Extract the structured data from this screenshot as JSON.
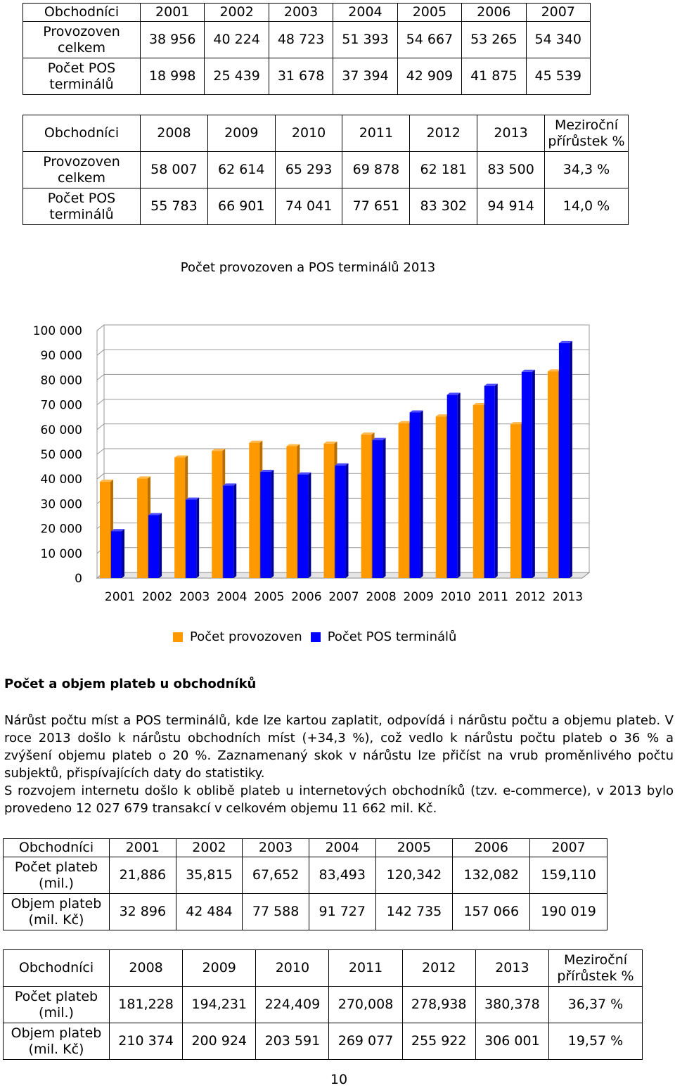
{
  "table1": {
    "header": [
      "Obchodníci",
      "2001",
      "2002",
      "2003",
      "2004",
      "2005",
      "2006",
      "2007"
    ],
    "rows": [
      {
        "label": "Provozoven celkem",
        "values": [
          "38 956",
          "40 224",
          "48 723",
          "51 393",
          "54 667",
          "53 265",
          "54 340"
        ]
      },
      {
        "label": "Počet POS terminálů",
        "values": [
          "18 998",
          "25 439",
          "31 678",
          "37 394",
          "42 909",
          "41 875",
          "45 539"
        ]
      }
    ]
  },
  "table2": {
    "header": [
      "Obchodníci",
      "2008",
      "2009",
      "2010",
      "2011",
      "2012",
      "2013",
      "Meziroční přírůstek %"
    ],
    "rows": [
      {
        "label": "Provozoven celkem",
        "values": [
          "58 007",
          "62 614",
          "65 293",
          "69 878",
          "62 181",
          "83 500",
          "34,3 %"
        ]
      },
      {
        "label": "Počet POS terminálů",
        "values": [
          "55 783",
          "66 901",
          "74 041",
          "77 651",
          "83 302",
          "94 914",
          "14,0 %"
        ]
      }
    ]
  },
  "chart_data": {
    "type": "bar",
    "title": "Počet provozoven a POS terminálů 2013",
    "categories": [
      "2001",
      "2002",
      "2003",
      "2004",
      "2005",
      "2006",
      "2007",
      "2008",
      "2009",
      "2010",
      "2011",
      "2012",
      "2013"
    ],
    "series": [
      {
        "name": "Počet provozoven",
        "color": "#ff9900",
        "values": [
          38956,
          40224,
          48723,
          51393,
          54667,
          53265,
          54340,
          58007,
          62614,
          65293,
          69878,
          62181,
          83500
        ]
      },
      {
        "name": "Počet POS terminálů",
        "color": "#0000ff",
        "values": [
          18998,
          25439,
          31678,
          37394,
          42909,
          41875,
          45539,
          55783,
          66901,
          74041,
          77651,
          83302,
          94914
        ]
      }
    ],
    "y_ticks": [
      "0",
      "10 000",
      "20 000",
      "30 000",
      "40 000",
      "50 000",
      "60 000",
      "70 000",
      "80 000",
      "90 000",
      "100 000"
    ],
    "ylim": [
      0,
      100000
    ],
    "legend": "bottom",
    "style": "3d"
  },
  "section": {
    "heading": "Počet a objem plateb u obchodníků",
    "paragraphs": [
      "Nárůst počtu míst a POS terminálů, kde lze kartou zaplatit, odpovídá i nárůstu počtu a objemu plateb. V roce 2013 došlo k nárůstu obchodních míst (+34,3 %), což vedlo k nárůstu počtu plateb o 36 % a zvýšení objemu plateb o 20 %. Zaznamenaný skok v nárůstu lze přičíst na vrub proměnlivého počtu subjektů, přispívajících daty do statistiky.",
      "S rozvojem internetu došlo k oblibě plateb u internetových obchodníků (tzv. e-commerce), v 2013 bylo provedeno 12 027 679 transakcí v celkovém objemu 11 662 mil. Kč."
    ]
  },
  "table3": {
    "header": [
      "Obchodníci",
      "2001",
      "2002",
      "2003",
      "2004",
      "2005",
      "2006",
      "2007"
    ],
    "rows": [
      {
        "label": "Počet plateb (mil.)",
        "values": [
          "21,886",
          "35,815",
          "67,652",
          "83,493",
          "120,342",
          "132,082",
          "159,110"
        ]
      },
      {
        "label": "Objem plateb (mil. Kč)",
        "values": [
          "32 896",
          "42 484",
          "77 588",
          "91 727",
          "142 735",
          "157 066",
          "190 019"
        ]
      }
    ]
  },
  "table4": {
    "header": [
      "Obchodníci",
      "2008",
      "2009",
      "2010",
      "2011",
      "2012",
      "2013",
      "Meziroční přírůstek %"
    ],
    "rows": [
      {
        "label": "Počet plateb (mil.)",
        "values": [
          "181,228",
          "194,231",
          "224,409",
          "270,008",
          "278,938",
          "380,378",
          "36,37 %"
        ]
      },
      {
        "label": "Objem plateb (mil. Kč)",
        "values": [
          "210 374",
          "200 924",
          "203 591",
          "269 077",
          "255 922",
          "306 001",
          "19,57 %"
        ]
      }
    ]
  },
  "page_number": "10"
}
